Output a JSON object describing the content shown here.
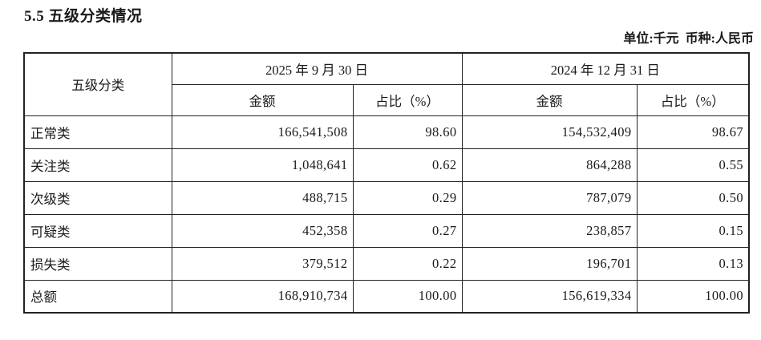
{
  "page": {
    "title": "5.5 五级分类情况",
    "unit_note": "单位:千元  币种:人民币"
  },
  "table": {
    "corner_header": "五级分类",
    "period_headers": [
      "2025 年 9 月 30 日",
      "2024 年 12 月 31 日"
    ],
    "sub_headers": {
      "amount": "金额",
      "ratio": "占比（%）"
    },
    "rows": [
      {
        "category": "正常类",
        "amount_2025": "166,541,508",
        "ratio_2025": "98.60",
        "amount_2024": "154,532,409",
        "ratio_2024": "98.67"
      },
      {
        "category": "关注类",
        "amount_2025": "1,048,641",
        "ratio_2025": "0.62",
        "amount_2024": "864,288",
        "ratio_2024": "0.55"
      },
      {
        "category": "次级类",
        "amount_2025": "488,715",
        "ratio_2025": "0.29",
        "amount_2024": "787,079",
        "ratio_2024": "0.50"
      },
      {
        "category": "可疑类",
        "amount_2025": "452,358",
        "ratio_2025": "0.27",
        "amount_2024": "238,857",
        "ratio_2024": "0.15"
      },
      {
        "category": "损失类",
        "amount_2025": "379,512",
        "ratio_2025": "0.22",
        "amount_2024": "196,701",
        "ratio_2024": "0.13"
      },
      {
        "category": "总额",
        "amount_2025": "168,910,734",
        "ratio_2025": "100.00",
        "amount_2024": "156,619,334",
        "ratio_2024": "100.00"
      }
    ]
  }
}
